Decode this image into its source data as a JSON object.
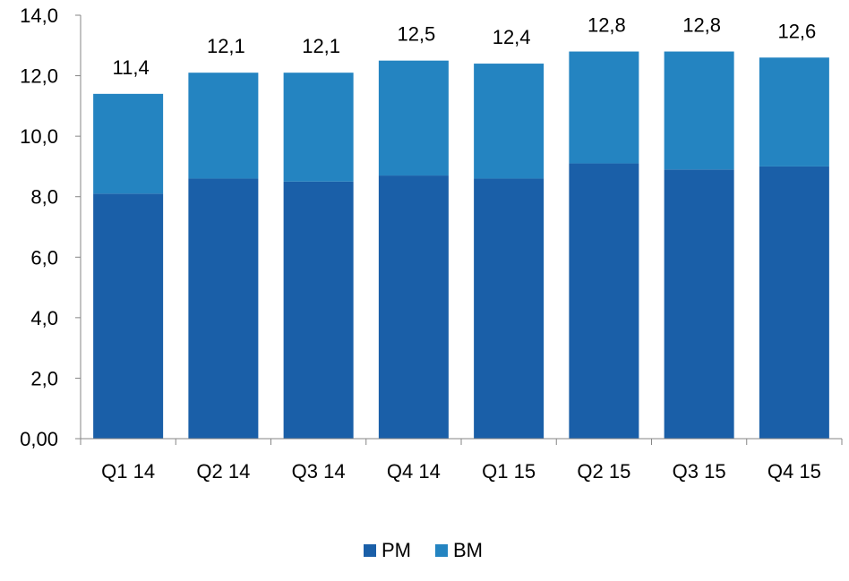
{
  "chart_data": {
    "type": "bar",
    "stacked": true,
    "categories": [
      "Q1 14",
      "Q2 14",
      "Q3 14",
      "Q4 14",
      "Q1 15",
      "Q2 15",
      "Q3 15",
      "Q4 15"
    ],
    "series": [
      {
        "name": "PM",
        "color": "#1a5fa8",
        "values": [
          8.1,
          8.6,
          8.5,
          8.7,
          8.6,
          9.1,
          8.9,
          9.0
        ]
      },
      {
        "name": "BM",
        "color": "#2484c1",
        "values": [
          3.3,
          3.5,
          3.6,
          3.8,
          3.8,
          3.7,
          3.9,
          3.6
        ]
      }
    ],
    "totals": [
      "11,4",
      "12,1",
      "12,1",
      "12,5",
      "12,4",
      "12,8",
      "12,8",
      "12,6"
    ],
    "total_values": [
      11.4,
      12.1,
      12.1,
      12.5,
      12.4,
      12.8,
      12.8,
      12.6
    ],
    "y_ticks": [
      {
        "value": 0,
        "label": "0,00"
      },
      {
        "value": 2,
        "label": "2,0"
      },
      {
        "value": 4,
        "label": "4,0"
      },
      {
        "value": 6,
        "label": "6,0"
      },
      {
        "value": 8,
        "label": "8,0"
      },
      {
        "value": 10,
        "label": "10,0"
      },
      {
        "value": 12,
        "label": "12,0"
      },
      {
        "value": 14,
        "label": "14,0"
      }
    ],
    "ylim": [
      0,
      14
    ],
    "grid": false,
    "legend_position": "bottom"
  }
}
